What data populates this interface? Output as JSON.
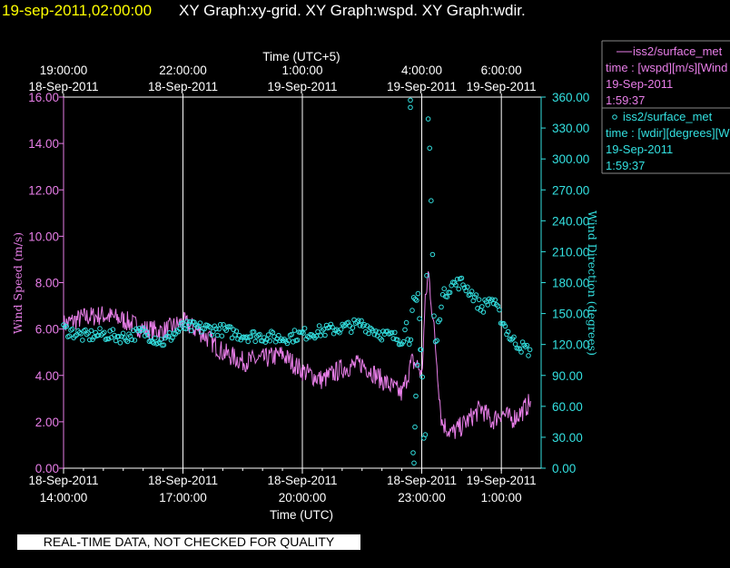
{
  "header": {
    "timestamp": "19-sep-2011,02:00:00",
    "graphs": "XY Graph:xy-grid.  XY Graph:wspd.  XY Graph:wdir."
  },
  "legend": {
    "wspd": {
      "name": "iss2/surface_met",
      "variable": "time : [wspd][m/s][Wind",
      "date": "19-Sep-2011",
      "time": "1:59:37"
    },
    "wdir": {
      "name": "iss2/surface_met",
      "variable": "time : [wdir][degrees][W",
      "date": "19-Sep-2011",
      "time": "1:59:37"
    }
  },
  "footer": {
    "quality_note": "REAL-TIME DATA, NOT CHECKED FOR QUALITY"
  },
  "colors": {
    "wspd": "#e87ee8",
    "wdir": "#33e0e0",
    "background": "#000000",
    "grid": "#ffffff"
  },
  "chart_data": {
    "type": "line",
    "top_axis": {
      "title": "Time (UTC+5)",
      "ticks": [
        {
          "time": "19:00:00",
          "date": "18-Sep-2011"
        },
        {
          "time": "22:00:00",
          "date": "18-Sep-2011"
        },
        {
          "time": "1:00:00",
          "date": "19-Sep-2011"
        },
        {
          "time": "4:00:00",
          "date": "19-Sep-2011"
        },
        {
          "time": "6:00:00",
          "date": "19-Sep-2011"
        }
      ]
    },
    "bottom_axis": {
      "title": "Time (UTC)",
      "range": [
        "2011-09-18 14:00:00",
        "2011-09-19 02:00:00"
      ],
      "ticks": [
        {
          "value": "2011-09-18 14:00",
          "date": "18-Sep-2011",
          "time": "14:00:00"
        },
        {
          "value": "2011-09-18 17:00",
          "date": "18-Sep-2011",
          "time": "17:00:00"
        },
        {
          "value": "2011-09-18 20:00",
          "date": "18-Sep-2011",
          "time": "20:00:00"
        },
        {
          "value": "2011-09-18 23:00",
          "date": "18-Sep-2011",
          "time": "23:00:00"
        },
        {
          "value": "2011-09-19 01:00",
          "date": "19-Sep-2011",
          "time": "1:00:00"
        }
      ]
    },
    "left_axis": {
      "title": "Wind Speed (m/s)",
      "range": [
        0,
        16
      ],
      "ticks": [
        "0.00",
        "2.00",
        "4.00",
        "6.00",
        "8.00",
        "10.00",
        "12.00",
        "14.00",
        "16.00"
      ]
    },
    "right_axis": {
      "title": "Wind Direction (degrees)",
      "range": [
        0,
        360
      ],
      "ticks": [
        "0.00",
        "30.00",
        "60.00",
        "90.00",
        "120.00",
        "150.00",
        "180.00",
        "210.00",
        "240.00",
        "270.00",
        "300.00",
        "330.00",
        "360.00"
      ]
    },
    "grid": "vertical lines at major time ticks",
    "series": [
      {
        "name": "iss2/surface_met",
        "variable": "wspd",
        "style": "line",
        "axis": "left",
        "x": [
          "2011-09-18 14:00",
          "2011-09-18 14:30",
          "2011-09-18 15:00",
          "2011-09-18 15:30",
          "2011-09-18 16:00",
          "2011-09-18 16:30",
          "2011-09-18 17:00",
          "2011-09-18 17:30",
          "2011-09-18 18:00",
          "2011-09-18 18:30",
          "2011-09-18 19:00",
          "2011-09-18 19:30",
          "2011-09-18 20:00",
          "2011-09-18 20:30",
          "2011-09-18 21:00",
          "2011-09-18 21:30",
          "2011-09-18 22:00",
          "2011-09-18 22:30",
          "2011-09-18 22:45",
          "2011-09-18 22:55",
          "2011-09-18 23:00",
          "2011-09-18 23:05",
          "2011-09-18 23:10",
          "2011-09-18 23:20",
          "2011-09-18 23:30",
          "2011-09-18 23:45",
          "2011-09-19 00:00",
          "2011-09-19 00:15",
          "2011-09-19 00:30",
          "2011-09-19 00:45",
          "2011-09-19 01:00",
          "2011-09-19 01:15",
          "2011-09-19 01:30",
          "2011-09-19 01:45"
        ],
        "y": [
          6.2,
          6.5,
          6.6,
          6.4,
          6.0,
          5.9,
          6.3,
          5.8,
          5.0,
          4.6,
          4.7,
          4.9,
          4.2,
          3.8,
          4.3,
          4.5,
          3.8,
          3.2,
          4.6,
          4.4,
          3.9,
          7.0,
          8.5,
          5.5,
          2.0,
          1.5,
          1.8,
          2.2,
          2.6,
          2.0,
          2.4,
          2.1,
          2.4,
          2.9
        ]
      },
      {
        "name": "iss2/surface_met",
        "variable": "wdir",
        "style": "markers",
        "axis": "right",
        "x": [
          "2011-09-18 14:00",
          "2011-09-18 14:30",
          "2011-09-18 15:00",
          "2011-09-18 15:30",
          "2011-09-18 16:00",
          "2011-09-18 16:30",
          "2011-09-18 17:00",
          "2011-09-18 17:30",
          "2011-09-18 18:00",
          "2011-09-18 18:30",
          "2011-09-18 19:00",
          "2011-09-18 19:30",
          "2011-09-18 20:00",
          "2011-09-18 20:30",
          "2011-09-18 21:00",
          "2011-09-18 21:30",
          "2011-09-18 22:00",
          "2011-09-18 22:30",
          "2011-09-18 22:45",
          "2011-09-18 22:55",
          "2011-09-18 23:00",
          "2011-09-18 23:05",
          "2011-09-18 23:10",
          "2011-09-18 23:20",
          "2011-09-18 23:30",
          "2011-09-18 23:45",
          "2011-09-19 00:00",
          "2011-09-19 00:15",
          "2011-09-19 00:30",
          "2011-09-19 00:45",
          "2011-09-19 01:00",
          "2011-09-19 01:15",
          "2011-09-19 01:30",
          "2011-09-19 01:45"
        ],
        "y": [
          135,
          128,
          130,
          127,
          132,
          122,
          137,
          136,
          134,
          129,
          128,
          126,
          130,
          133,
          136,
          140,
          130,
          125,
          145,
          152,
          100,
          15,
          357,
          110,
          165,
          178,
          180,
          170,
          155,
          165,
          145,
          125,
          118,
          113
        ]
      }
    ]
  }
}
